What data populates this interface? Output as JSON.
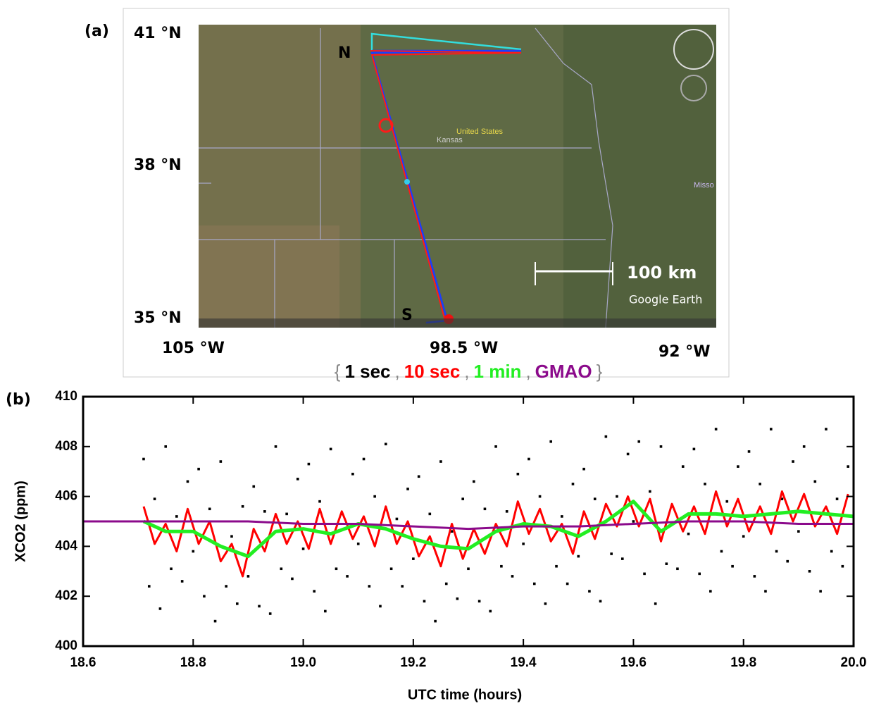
{
  "map": {
    "panel_label": "(a)",
    "lat_labels": [
      "41 °N",
      "38 °N",
      "35 °N"
    ],
    "lon_labels": [
      "105 °W",
      "98.5 °W",
      "92 °W"
    ],
    "endpoints": [
      "N",
      "S"
    ],
    "scale_label": "100 km",
    "attribution": "Google Earth",
    "place_labels": [
      "United States",
      "Kansas",
      "Misso"
    ]
  },
  "chart_data": {
    "type": "scatter",
    "panel_label": "(b)",
    "xlabel": "UTC time (hours)",
    "ylabel": "XCO2 (ppm)",
    "legend_open": "{",
    "legend_separator": ",",
    "legend_close": "}",
    "xlim": [
      18.6,
      20.0
    ],
    "ylim": [
      400,
      410
    ],
    "xticks": [
      18.6,
      18.8,
      {
        "value": 19,
        "label": "19.0"
      },
      19.2,
      19.4,
      19.6,
      19.8,
      {
        "value": 20,
        "label": "20.0"
      }
    ],
    "yticks": [
      400,
      402,
      404,
      406,
      408,
      410
    ],
    "series": [
      {
        "name": "1 sec",
        "color": "#000000",
        "mode": "markers",
        "x": [
          18.71,
          18.72,
          18.73,
          18.74,
          18.75,
          18.76,
          18.77,
          18.78,
          18.79,
          18.8,
          18.81,
          18.82,
          18.83,
          18.84,
          18.85,
          18.86,
          18.87,
          18.88,
          18.89,
          18.9,
          18.91,
          18.92,
          18.93,
          18.94,
          18.95,
          18.96,
          18.97,
          18.98,
          18.99,
          19.0,
          19.01,
          19.02,
          19.03,
          19.04,
          19.05,
          19.06,
          19.07,
          19.08,
          19.09,
          19.1,
          19.11,
          19.12,
          19.13,
          19.14,
          19.15,
          19.16,
          19.17,
          19.18,
          19.19,
          19.2,
          19.21,
          19.22,
          19.23,
          19.24,
          19.25,
          19.26,
          19.27,
          19.28,
          19.29,
          19.3,
          19.31,
          19.32,
          19.33,
          19.34,
          19.35,
          19.36,
          19.37,
          19.38,
          19.39,
          19.4,
          19.41,
          19.42,
          19.43,
          19.44,
          19.45,
          19.46,
          19.47,
          19.48,
          19.49,
          19.5,
          19.51,
          19.52,
          19.53,
          19.54,
          19.55,
          19.56,
          19.57,
          19.58,
          19.59,
          19.6,
          19.61,
          19.62,
          19.63,
          19.64,
          19.65,
          19.66,
          19.67,
          19.68,
          19.69,
          19.7,
          19.71,
          19.72,
          19.73,
          19.74,
          19.75,
          19.76,
          19.77,
          19.78,
          19.79,
          19.8,
          19.81,
          19.82,
          19.83,
          19.84,
          19.85,
          19.86,
          19.87,
          19.88,
          19.89,
          19.9,
          19.91,
          19.92,
          19.93,
          19.94,
          19.95,
          19.96,
          19.97,
          19.98,
          19.99
        ],
        "values": [
          407.5,
          402.4,
          405.9,
          401.5,
          408.0,
          403.1,
          405.2,
          402.6,
          406.6,
          403.8,
          407.1,
          402.0,
          405.5,
          401.0,
          407.4,
          402.4,
          404.4,
          401.7,
          405.6,
          402.8,
          406.4,
          401.6,
          405.4,
          401.3,
          408.0,
          403.1,
          405.3,
          402.7,
          406.7,
          403.9,
          407.3,
          402.2,
          405.8,
          401.4,
          407.9,
          403.1,
          405.3,
          402.8,
          406.9,
          404.1,
          407.5,
          402.4,
          406.0,
          401.6,
          408.1,
          403.1,
          405.1,
          402.4,
          406.3,
          403.5,
          406.8,
          401.8,
          405.3,
          401.0,
          407.4,
          402.5,
          404.6,
          401.9,
          405.9,
          403.1,
          406.6,
          401.8,
          405.5,
          401.4,
          408.0,
          403.2,
          405.4,
          402.8,
          406.9,
          404.1,
          407.5,
          402.5,
          406.0,
          401.7,
          408.2,
          403.2,
          405.2,
          402.5,
          406.5,
          403.6,
          407.1,
          402.2,
          405.9,
          401.8,
          408.4,
          403.7,
          406.0,
          403.5,
          407.7,
          405.0,
          408.2,
          402.9,
          406.2,
          401.7,
          408.0,
          403.3,
          405.6,
          403.1,
          407.2,
          404.5,
          407.9,
          402.9,
          406.5,
          402.2,
          408.7,
          403.8,
          405.8,
          403.2,
          407.2,
          404.4,
          407.8,
          402.8,
          406.5,
          402.2,
          408.7,
          403.8,
          405.9,
          403.4,
          407.4,
          404.6,
          408.0,
          403.0,
          406.6,
          402.2,
          408.7,
          403.8,
          405.9,
          403.2,
          407.2
        ]
      },
      {
        "name": "10 sec",
        "color": "#ff0000",
        "mode": "lines",
        "x": [
          18.71,
          18.73,
          18.75,
          18.77,
          18.79,
          18.81,
          18.83,
          18.85,
          18.87,
          18.89,
          18.91,
          18.93,
          18.95,
          18.97,
          18.99,
          19.01,
          19.03,
          19.05,
          19.07,
          19.09,
          19.11,
          19.13,
          19.15,
          19.17,
          19.19,
          19.21,
          19.23,
          19.25,
          19.27,
          19.29,
          19.31,
          19.33,
          19.35,
          19.37,
          19.39,
          19.41,
          19.43,
          19.45,
          19.47,
          19.49,
          19.51,
          19.53,
          19.55,
          19.57,
          19.59,
          19.61,
          19.63,
          19.65,
          19.67,
          19.69,
          19.71,
          19.73,
          19.75,
          19.77,
          19.79,
          19.81,
          19.83,
          19.85,
          19.87,
          19.89,
          19.91,
          19.93,
          19.95,
          19.97,
          19.99
        ],
        "values": [
          405.6,
          404.1,
          404.9,
          403.8,
          405.5,
          404.1,
          405.0,
          403.4,
          404.1,
          402.8,
          404.7,
          403.8,
          405.3,
          404.1,
          405.0,
          403.9,
          405.5,
          404.1,
          405.4,
          404.3,
          405.2,
          404.0,
          405.6,
          404.1,
          405.0,
          403.6,
          404.4,
          403.2,
          404.9,
          403.5,
          404.7,
          403.7,
          404.9,
          404.0,
          405.8,
          404.5,
          405.5,
          404.2,
          404.9,
          403.7,
          405.4,
          404.3,
          405.7,
          404.8,
          406.0,
          404.8,
          405.9,
          404.2,
          405.7,
          404.6,
          405.6,
          404.5,
          406.2,
          404.8,
          405.9,
          404.6,
          405.6,
          404.5,
          406.2,
          405.0,
          406.1,
          404.8,
          405.6,
          404.5,
          406.1
        ]
      },
      {
        "name": "1 min",
        "color": "#22ee22",
        "mode": "lines",
        "x": [
          18.71,
          18.75,
          18.8,
          18.85,
          18.9,
          18.95,
          19.0,
          19.05,
          19.1,
          19.15,
          19.2,
          19.25,
          19.3,
          19.35,
          19.4,
          19.45,
          19.5,
          19.55,
          19.6,
          19.65,
          19.7,
          19.75,
          19.8,
          19.85,
          19.9,
          19.95,
          20.0
        ],
        "values": [
          405.0,
          404.6,
          404.6,
          404.0,
          403.6,
          404.6,
          404.7,
          404.5,
          404.9,
          404.7,
          404.3,
          404.0,
          403.9,
          404.6,
          404.9,
          404.8,
          404.4,
          405.0,
          405.8,
          404.6,
          405.3,
          405.3,
          405.2,
          405.3,
          405.4,
          405.3,
          405.2
        ]
      },
      {
        "name": "GMAO",
        "color": "#8b0a8b",
        "mode": "lines",
        "x": [
          18.6,
          18.7,
          18.8,
          18.9,
          19.0,
          19.1,
          19.2,
          19.3,
          19.4,
          19.5,
          19.6,
          19.7,
          19.8,
          19.9,
          20.0
        ],
        "values": [
          405.0,
          405.0,
          405.0,
          405.0,
          404.9,
          404.9,
          404.8,
          404.7,
          404.8,
          404.8,
          404.9,
          405.0,
          405.0,
          404.9,
          404.9
        ]
      }
    ]
  }
}
